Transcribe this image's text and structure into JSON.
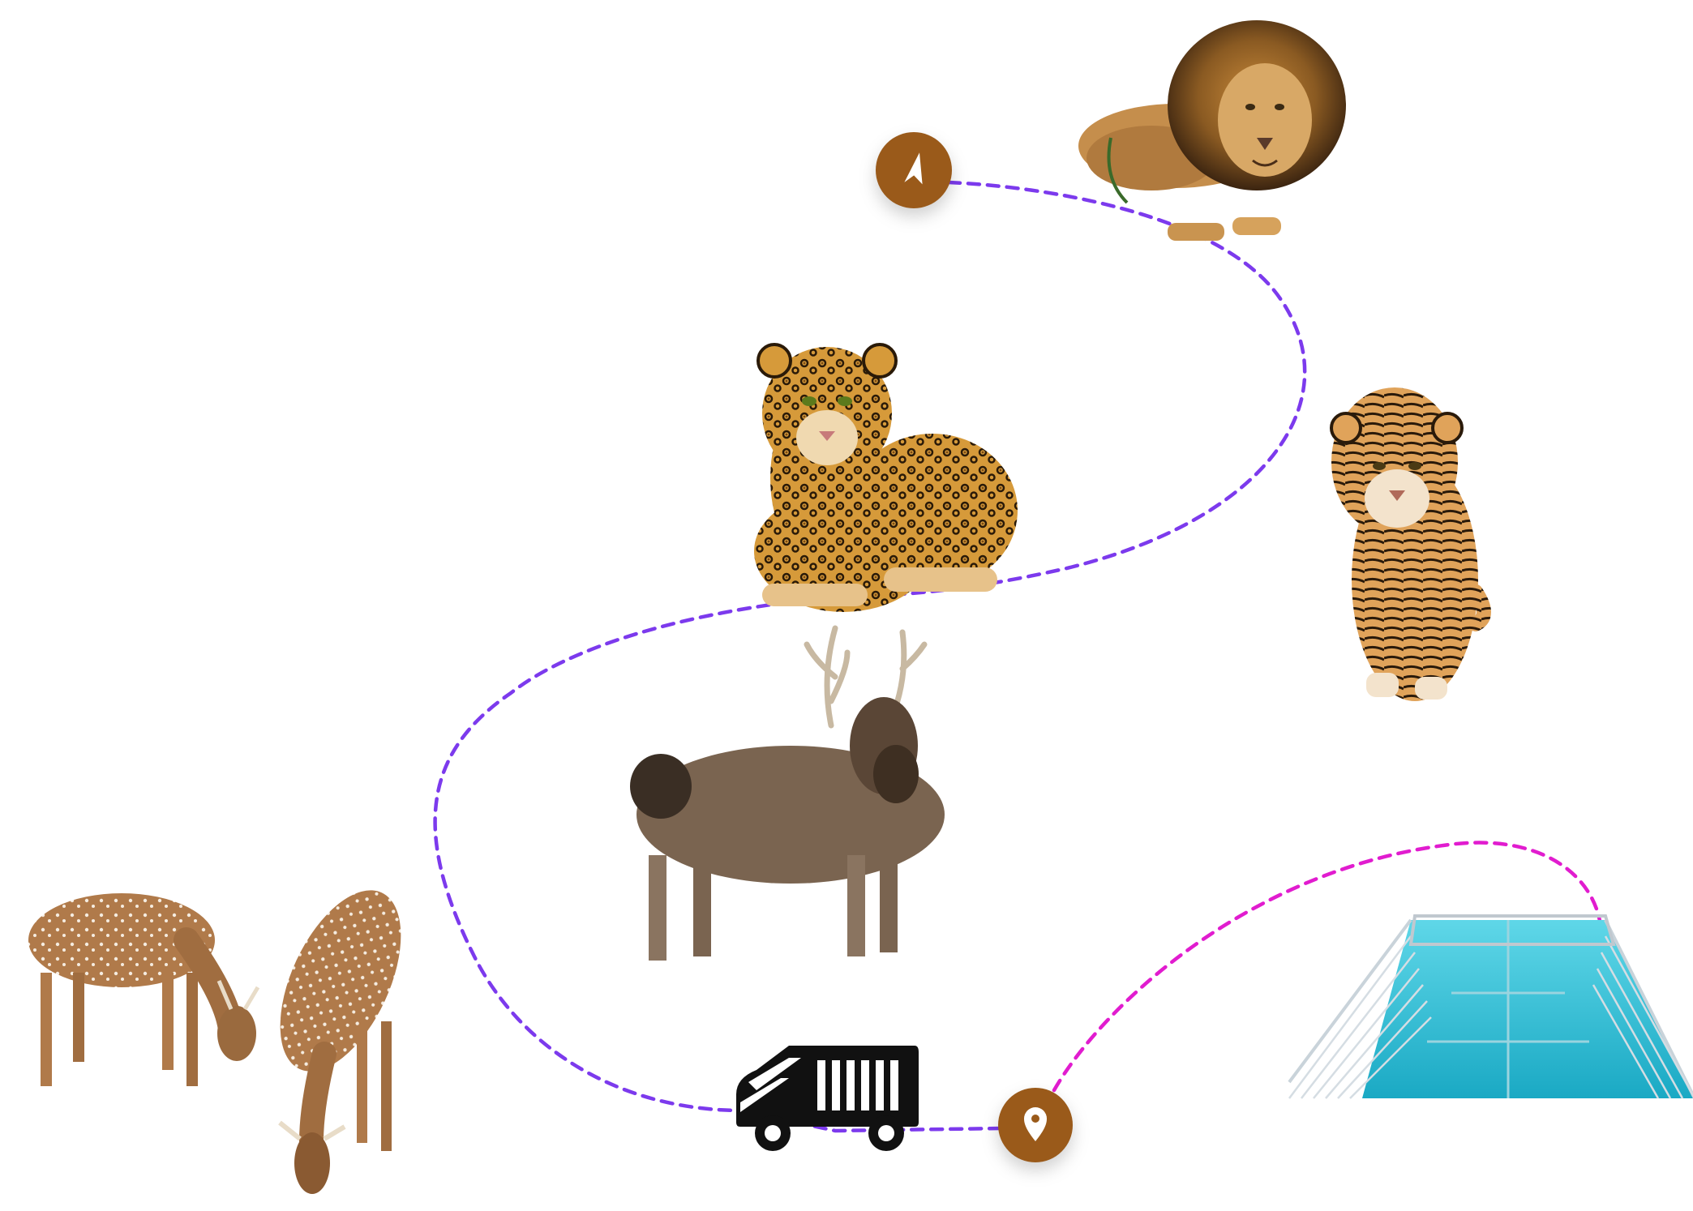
{
  "map": {
    "background": "#ffffff",
    "route_colors": {
      "main": "#7c3aed",
      "secondary": "#e11ccf"
    },
    "marker_color": "#9a5a1a",
    "stops": [
      {
        "name": "lion",
        "icon": "navigation-arrow-icon"
      },
      {
        "name": "tiger"
      },
      {
        "name": "leopard"
      },
      {
        "name": "sambar-deer"
      },
      {
        "name": "spotted-deer"
      },
      {
        "name": "safari-bus",
        "icon": "safari-bus-icon"
      },
      {
        "name": "destination",
        "icon": "location-pin-icon"
      },
      {
        "name": "glass-skywalk"
      }
    ]
  }
}
